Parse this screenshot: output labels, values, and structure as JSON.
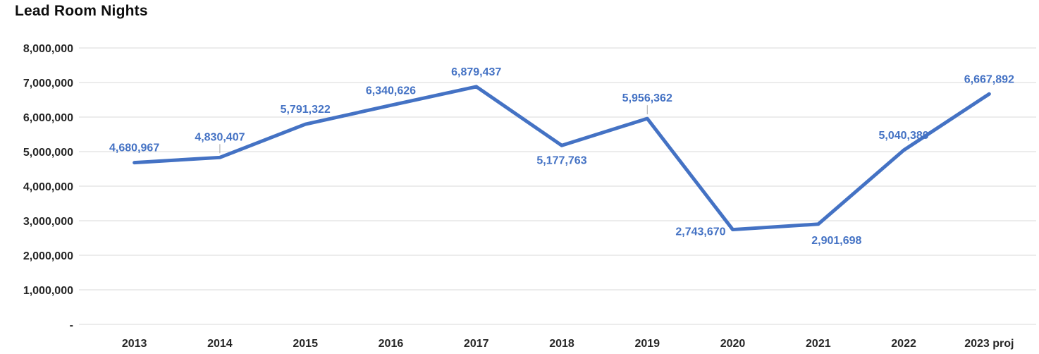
{
  "chart_data": {
    "type": "line",
    "title": "Lead Room Nights",
    "categories": [
      "2013",
      "2014",
      "2015",
      "2016",
      "2017",
      "2018",
      "2019",
      "2020",
      "2021",
      "2022",
      "2023 proj"
    ],
    "values": [
      4680967,
      4830407,
      5791322,
      6340626,
      6879437,
      5177763,
      5956362,
      2743670,
      2901698,
      5040389,
      6667892
    ],
    "data_labels": [
      "4,680,967",
      "4,830,407",
      "5,791,322",
      "6,340,626",
      "6,879,437",
      "5,177,763",
      "5,956,362",
      "2,743,670",
      "2,901,698",
      "5,040,389",
      "6,667,892"
    ],
    "label_placements": [
      "above",
      "above-leader",
      "above",
      "above",
      "above",
      "below",
      "above-leader",
      "left",
      "below-right",
      "above",
      "above"
    ],
    "ylim": [
      0,
      8000000
    ],
    "y_ticks": [
      {
        "value": 0,
        "label": "-"
      },
      {
        "value": 1000000,
        "label": "1,000,000"
      },
      {
        "value": 2000000,
        "label": "2,000,000"
      },
      {
        "value": 3000000,
        "label": "3,000,000"
      },
      {
        "value": 4000000,
        "label": "4,000,000"
      },
      {
        "value": 5000000,
        "label": "5,000,000"
      },
      {
        "value": 6000000,
        "label": "6,000,000"
      },
      {
        "value": 7000000,
        "label": "7,000,000"
      },
      {
        "value": 8000000,
        "label": "8,000,000"
      }
    ],
    "grid": "horizontal",
    "legend": "none",
    "line_color": "#4472C4",
    "label_color": "#4472C4",
    "grid_color": "#D9D9D9",
    "axis_text_color": "#262626",
    "leader_line_color": "#A6A6A6"
  }
}
